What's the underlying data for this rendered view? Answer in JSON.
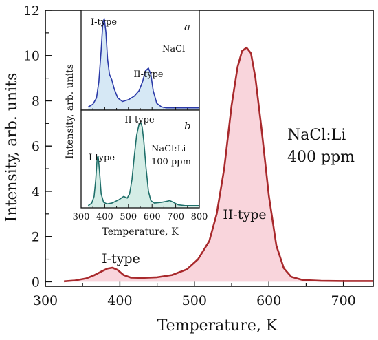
{
  "chart_data": [
    {
      "type": "area",
      "xlabel": "Temperature, K",
      "ylabel": "Intensity, arb. units",
      "xlim": [
        300,
        740
      ],
      "ylim": [
        -0.2,
        12
      ],
      "xticks": [
        300,
        400,
        500,
        600,
        700
      ],
      "yticks": [
        0,
        2,
        4,
        6,
        8,
        10,
        12
      ],
      "fill_color": "#f9d5dc",
      "line_color": "#a8292c",
      "annotations": [
        "I-type",
        "II-type"
      ],
      "sample_label": [
        "NaCl:Li",
        "400 ppm"
      ],
      "series": [
        {
          "x": [
            325,
            340,
            355,
            365,
            375,
            383,
            390,
            397,
            405,
            415,
            430,
            450,
            470,
            490,
            505,
            520,
            530,
            540,
            550,
            558,
            564,
            570,
            576,
            582,
            590,
            600,
            610,
            620,
            630,
            645,
            670,
            700,
            740
          ],
          "y": [
            0.02,
            0.06,
            0.15,
            0.28,
            0.45,
            0.58,
            0.62,
            0.52,
            0.3,
            0.18,
            0.17,
            0.2,
            0.3,
            0.55,
            1.0,
            1.8,
            3.0,
            5.0,
            7.8,
            9.5,
            10.2,
            10.35,
            10.1,
            9.0,
            6.8,
            3.8,
            1.6,
            0.6,
            0.22,
            0.08,
            0.04,
            0.03,
            0.03
          ]
        }
      ]
    },
    {
      "type": "area",
      "panel": "a",
      "xlabel": "Temperature, K",
      "ylabel": "Intensity, arb. units",
      "xlim": [
        300,
        800
      ],
      "fill_color": "#d6e8f5",
      "line_color": "#2b3aa8",
      "annotations": [
        "I-type",
        "II-type"
      ],
      "sample_label": "NaCl",
      "series": [
        {
          "x": [
            330,
            350,
            365,
            375,
            385,
            392,
            398,
            405,
            412,
            420,
            430,
            440,
            455,
            475,
            500,
            525,
            545,
            560,
            572,
            585,
            595,
            605,
            620,
            640,
            660,
            700,
            760,
            800
          ],
          "y": [
            0.02,
            0.05,
            0.12,
            0.3,
            0.65,
            0.95,
            1.0,
            0.85,
            0.55,
            0.38,
            0.32,
            0.22,
            0.12,
            0.08,
            0.1,
            0.14,
            0.2,
            0.3,
            0.42,
            0.45,
            0.38,
            0.2,
            0.06,
            0.02,
            0.01,
            0.01,
            0.01,
            0.01
          ]
        }
      ]
    },
    {
      "type": "area",
      "panel": "b",
      "xlabel": "Temperature, K",
      "ylabel": "Intensity, arb. units",
      "xlim": [
        300,
        800
      ],
      "xticks": [
        300,
        400,
        500,
        600,
        700,
        800
      ],
      "fill_color": "#d4ede6",
      "line_color": "#1f6f6a",
      "annotations": [
        "II-type",
        "I-type"
      ],
      "sample_label": [
        "NaCl:Li",
        "100 ppm"
      ],
      "series": [
        {
          "x": [
            330,
            345,
            355,
            362,
            368,
            372,
            378,
            385,
            395,
            410,
            430,
            460,
            480,
            495,
            505,
            515,
            525,
            535,
            545,
            552,
            558,
            565,
            575,
            585,
            595,
            610,
            640,
            660,
            675,
            690,
            710,
            740,
            780,
            800
          ],
          "y": [
            0.01,
            0.04,
            0.12,
            0.32,
            0.58,
            0.6,
            0.42,
            0.15,
            0.05,
            0.03,
            0.04,
            0.08,
            0.12,
            0.1,
            0.15,
            0.32,
            0.6,
            0.85,
            0.98,
            1.0,
            0.95,
            0.78,
            0.45,
            0.18,
            0.07,
            0.04,
            0.05,
            0.06,
            0.07,
            0.05,
            0.02,
            0.01,
            0.01,
            0.01
          ]
        }
      ]
    }
  ]
}
